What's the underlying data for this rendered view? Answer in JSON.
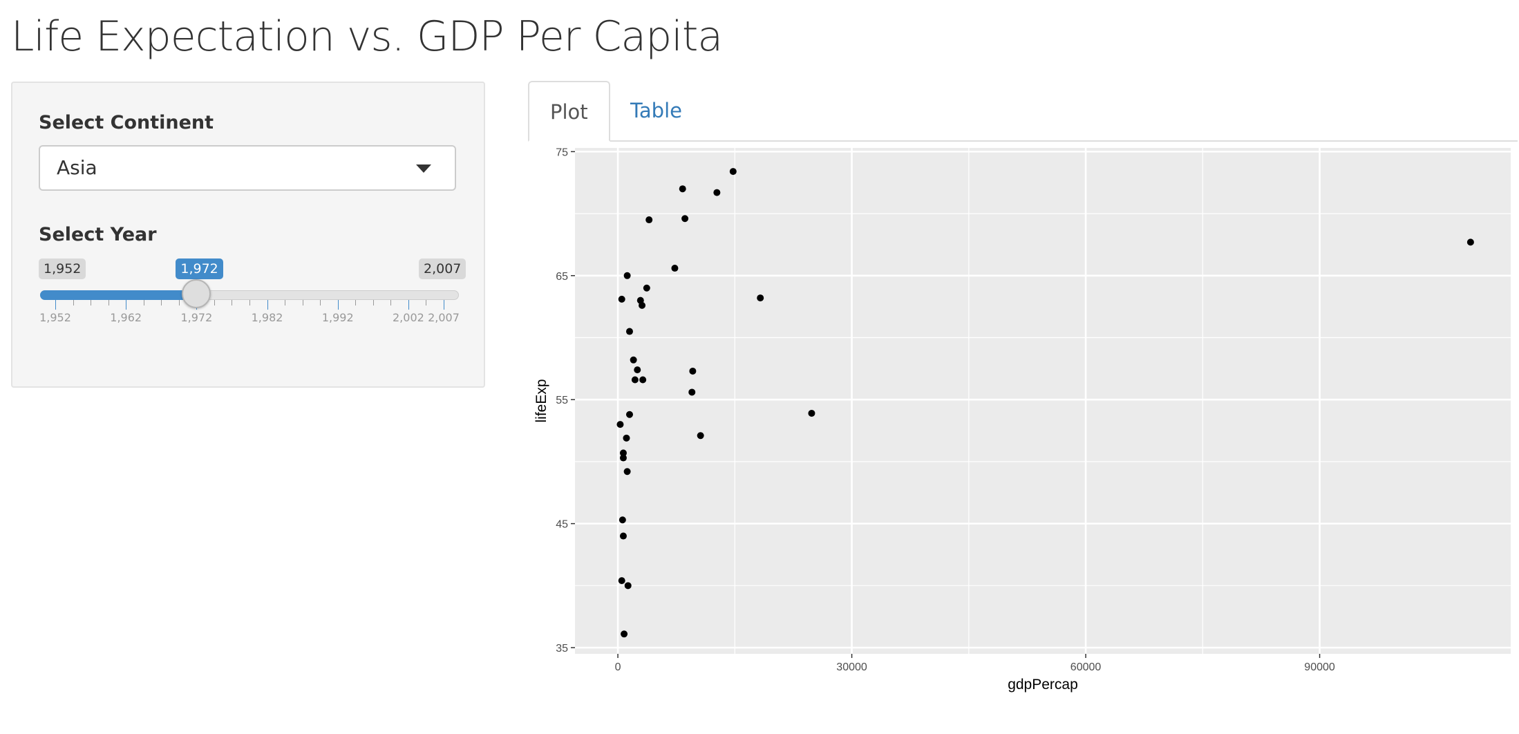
{
  "page": {
    "title": "Life Expectation vs. GDP Per Capita"
  },
  "sidebar": {
    "continent": {
      "label": "Select Continent",
      "selected": "Asia"
    },
    "year": {
      "label": "Select Year",
      "min": 1952,
      "max": 2007,
      "value": 1972,
      "min_label": "1,952",
      "max_label": "2,007",
      "value_label": "1,972",
      "tick_values": [
        1952,
        1962,
        1972,
        1982,
        1992,
        2002,
        2007
      ],
      "tick_labels": [
        "1,952",
        "1,962",
        "1,972",
        "1,982",
        "1,992",
        "2,002",
        "2,007"
      ],
      "accent": "#428bca"
    }
  },
  "tabs": [
    {
      "label": "Plot",
      "active": true
    },
    {
      "label": "Table",
      "active": false
    }
  ],
  "chart_data": {
    "type": "scatter",
    "title": "",
    "xlabel": "gdpPercap",
    "ylabel": "lifeExp",
    "xlim": [
      -5500,
      114500
    ],
    "ylim": [
      34.5,
      75.3
    ],
    "x_ticks": [
      0,
      30000,
      60000,
      90000
    ],
    "x_tick_labels": [
      "0",
      "30000",
      "60000",
      "90000"
    ],
    "y_ticks": [
      35,
      45,
      55,
      65,
      75
    ],
    "y_tick_labels": [
      "35",
      "45",
      "55",
      "65",
      "75"
    ],
    "grid": true,
    "panel_color": "#ebebeb",
    "point_color": "#000000",
    "points": [
      [
        14780,
        73.4
      ],
      [
        8300,
        72.0
      ],
      [
        12700,
        71.7
      ],
      [
        8600,
        69.6
      ],
      [
        4000,
        69.5
      ],
      [
        109350,
        67.7
      ],
      [
        7300,
        65.6
      ],
      [
        1200,
        65.0
      ],
      [
        3700,
        64.0
      ],
      [
        500,
        63.1
      ],
      [
        2900,
        63.0
      ],
      [
        3100,
        62.6
      ],
      [
        18270,
        63.2
      ],
      [
        1500,
        60.5
      ],
      [
        2000,
        58.2
      ],
      [
        2500,
        57.4
      ],
      [
        9600,
        57.3
      ],
      [
        2200,
        56.6
      ],
      [
        3200,
        56.6
      ],
      [
        9500,
        55.6
      ],
      [
        24850,
        53.9
      ],
      [
        1500,
        53.8
      ],
      [
        300,
        53.0
      ],
      [
        1100,
        51.9
      ],
      [
        10600,
        52.1
      ],
      [
        700,
        50.7
      ],
      [
        700,
        50.3
      ],
      [
        1200,
        49.2
      ],
      [
        600,
        45.3
      ],
      [
        700,
        44.0
      ],
      [
        500,
        40.4
      ],
      [
        1300,
        40.0
      ],
      [
        800,
        36.1
      ]
    ]
  }
}
